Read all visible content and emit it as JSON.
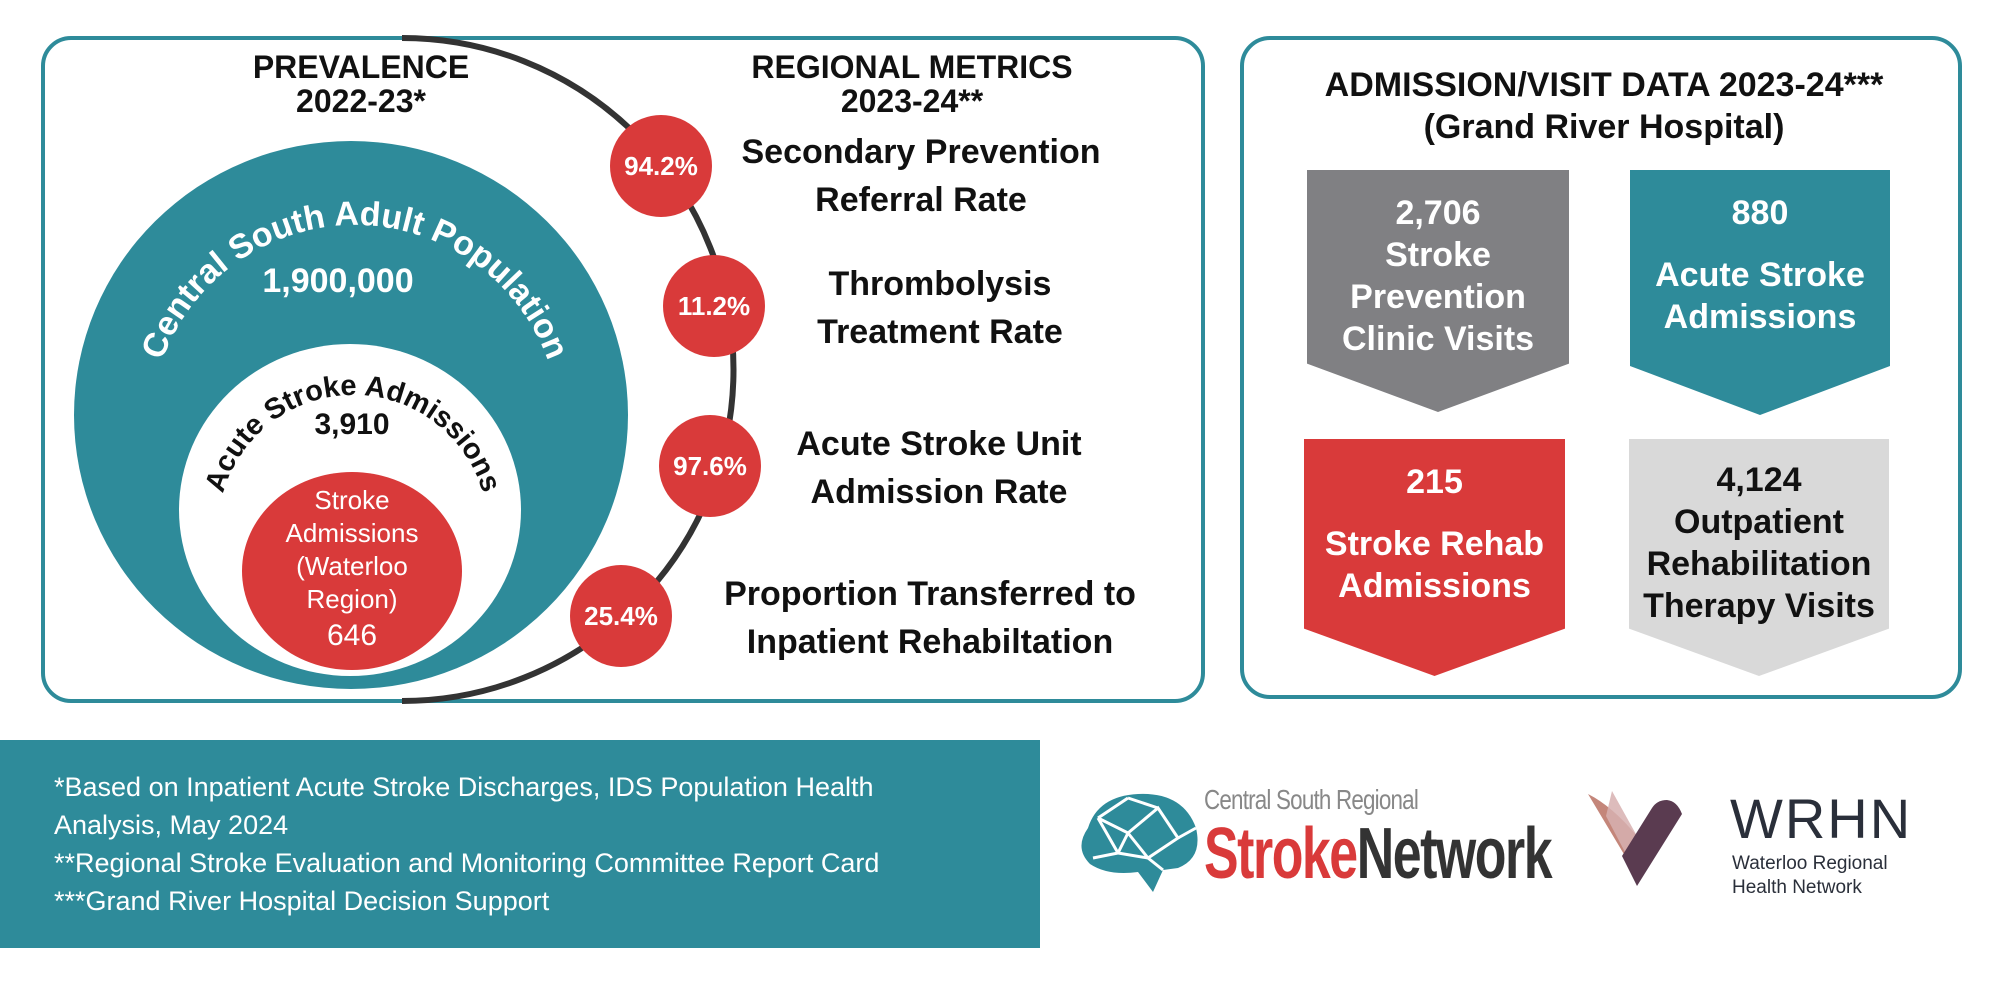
{
  "prevalence": {
    "heading_line1": "PREVALENCE",
    "heading_line2": "2022-23*",
    "population_label": "Central South Adult Population",
    "population_value": "1,900,000",
    "acute_label": "Acute Stroke Admissions",
    "acute_value": "3,910",
    "waterloo_lines": [
      "Stroke",
      "Admissions",
      "(Waterloo",
      "Region)"
    ],
    "waterloo_value": "646"
  },
  "regional_metrics": {
    "heading_line1": "REGIONAL METRICS",
    "heading_line2": "2023-24**",
    "items": [
      {
        "value": "94.2%",
        "line1": "Secondary Prevention",
        "line2": "Referral Rate"
      },
      {
        "value": "11.2%",
        "line1": "Thrombolysis",
        "line2": "Treatment Rate"
      },
      {
        "value": "97.6%",
        "line1": "Acute Stroke Unit",
        "line2": "Admission Rate"
      },
      {
        "value": "25.4%",
        "line1": "Proportion Transferred to",
        "line2": "Inpatient Rehabiltation"
      }
    ]
  },
  "admission_visit": {
    "heading_line1": "ADMISSION/VISIT DATA 2023-24***",
    "heading_line2": "(Grand River Hospital)",
    "cards": [
      {
        "value": "2,706",
        "label_lines": [
          "Stroke",
          "Prevention",
          "Clinic Visits"
        ],
        "color": "#808083",
        "text_color": "#ffffff"
      },
      {
        "value": "880",
        "label_lines": [
          "Acute Stroke",
          "Admissions"
        ],
        "color": "#2e8b9a",
        "text_color": "#ffffff"
      },
      {
        "value": "215",
        "label_lines": [
          "Stroke Rehab",
          "Admissions"
        ],
        "color": "#d93a3a",
        "text_color": "#ffffff"
      },
      {
        "value": "4,124",
        "label_lines": [
          "Outpatient",
          "Rehabilitation",
          "Therapy Visits"
        ],
        "color": "#d9d9d9",
        "text_color": "#111111"
      }
    ]
  },
  "footnotes": [
    "*Based on Inpatient Acute Stroke Discharges, IDS Population Health",
    "Analysis, May 2024",
    "**Regional Stroke Evaluation and Monitoring Committee Report Card",
    "***Grand River Hospital Decision Support"
  ],
  "logos": {
    "stroke_network": {
      "line1": "Central South Regional",
      "word1": "Stroke",
      "word2": "Network"
    },
    "wrhn": {
      "acronym": "WRHN",
      "line1": "Waterloo Regional",
      "line2": "Health Network"
    }
  },
  "colors": {
    "teal": "#2e8b9a",
    "red": "#d93a3a",
    "gray": "#808083",
    "light_gray": "#d9d9d9"
  }
}
